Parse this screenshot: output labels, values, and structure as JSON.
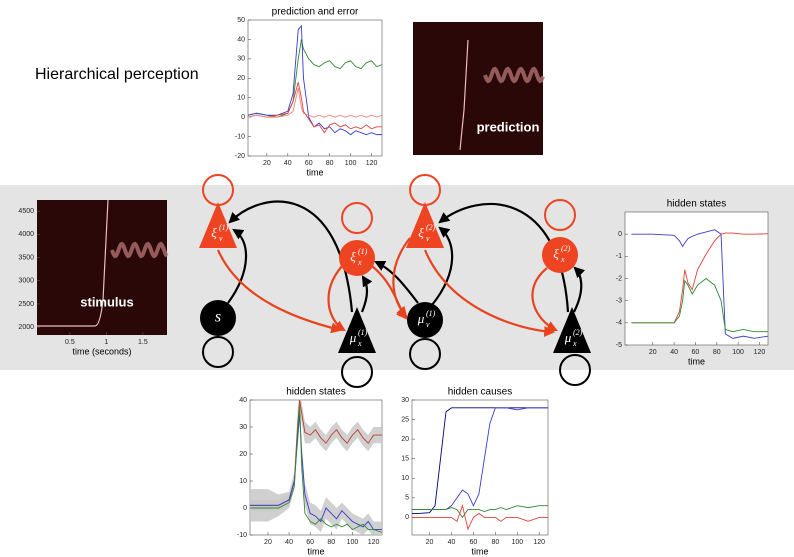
{
  "title": "Hierarchical perception",
  "prediction_label": "prediction",
  "chart_data": [
    {
      "type": "line",
      "title": "prediction and error",
      "xlabel": "time",
      "xlim": [
        2,
        130
      ],
      "ylim": [
        -20,
        50
      ],
      "xticks": [
        20,
        40,
        60,
        80,
        100,
        120
      ],
      "yticks": [
        -20,
        -10,
        0,
        10,
        20,
        30,
        40,
        50
      ],
      "x": [
        2,
        10,
        20,
        30,
        40,
        45,
        50,
        53,
        55,
        60,
        65,
        70,
        75,
        80,
        85,
        90,
        95,
        100,
        105,
        110,
        115,
        120,
        125,
        130
      ],
      "series": [
        {
          "color": "#2e8b2e",
          "values": [
            1,
            2,
            1,
            0,
            2,
            8,
            30,
            40,
            35,
            30,
            27,
            26,
            28,
            29,
            26,
            25,
            28,
            29,
            26,
            25,
            28,
            29,
            26,
            27
          ]
        },
        {
          "color": "#3a3acd",
          "values": [
            1,
            2,
            1,
            1,
            3,
            12,
            45,
            47,
            20,
            0,
            -5,
            -3,
            -6,
            -5,
            -8,
            -6,
            -7,
            -9,
            -7,
            -8,
            -9,
            -8,
            -9,
            -9
          ]
        },
        {
          "color": "#e0403a",
          "values": [
            0,
            1,
            0,
            1,
            2,
            8,
            18,
            10,
            3,
            -1,
            -5,
            -4,
            -8,
            -4,
            -3,
            -5,
            -4,
            -6,
            -5,
            -6,
            -4,
            -6,
            -5,
            -5
          ]
        },
        {
          "color": "#f08080",
          "values": [
            0,
            1,
            0,
            0,
            1,
            3,
            15,
            5,
            2,
            1,
            0,
            1,
            0,
            1,
            0,
            1,
            0,
            1,
            0,
            1,
            0,
            1,
            0,
            1
          ]
        }
      ]
    },
    {
      "type": "image",
      "label": "stimulus",
      "xlabel": "time (seconds)",
      "xlim": [
        0.05,
        1.83
      ],
      "ylim": [
        1830,
        4740
      ],
      "xticks": [
        0.5,
        1,
        1.5
      ],
      "yticks": [
        2000,
        2500,
        3000,
        3500,
        4000,
        4500
      ]
    },
    {
      "type": "line",
      "title": "hidden states",
      "xlabel": "time",
      "xlim": [
        -6,
        128
      ],
      "ylim": [
        -5,
        1
      ],
      "xticks": [
        20,
        40,
        60,
        80,
        100,
        120
      ],
      "yticks": [
        -5,
        -4,
        -3,
        -2,
        -1,
        0
      ],
      "x": [
        0,
        20,
        40,
        45,
        48,
        50,
        53,
        57,
        62,
        70,
        78,
        84,
        88,
        95,
        105,
        115,
        128
      ],
      "series": [
        {
          "color": "#3a3acd",
          "values": [
            0,
            0,
            -0.05,
            -0.3,
            -0.55,
            -0.4,
            -0.2,
            -0.1,
            0,
            0.1,
            0.2,
            0,
            -4.5,
            -4.7,
            -4.6,
            -4.7,
            -4.6
          ]
        },
        {
          "color": "#e0403a",
          "values": [
            -4,
            -4,
            -4,
            -3.5,
            -2.5,
            -1.6,
            -2.2,
            -2.5,
            -1.6,
            -0.9,
            -0.3,
            0,
            0.05,
            0.05,
            0,
            0,
            0.02
          ]
        },
        {
          "color": "#2e8b2e",
          "values": [
            -4,
            -4,
            -4,
            -3.7,
            -3,
            -2.1,
            -2.3,
            -2.7,
            -2.3,
            -2,
            -2.3,
            -3,
            -4.3,
            -4.4,
            -4.3,
            -4.4,
            -4.4
          ]
        }
      ]
    },
    {
      "type": "line",
      "title": "hidden states",
      "xlabel": "time",
      "xlim": [
        3,
        128
      ],
      "ylim": [
        -10,
        40
      ],
      "xticks": [
        20,
        40,
        60,
        80,
        100,
        120
      ],
      "yticks": [
        -10,
        0,
        10,
        20,
        30,
        40
      ],
      "x": [
        3,
        10,
        20,
        30,
        40,
        45,
        48,
        50,
        52,
        55,
        60,
        65,
        70,
        75,
        80,
        85,
        90,
        95,
        100,
        105,
        110,
        115,
        120,
        128
      ],
      "series": [
        {
          "color": "#c0392b",
          "values": [
            1,
            1,
            1,
            1,
            3,
            10,
            30,
            40,
            35,
            28,
            27,
            29,
            26,
            24,
            27,
            29,
            26,
            24,
            27,
            29,
            26,
            24,
            27,
            27
          ],
          "ci": [
            2,
            2,
            2,
            2,
            2,
            3,
            5,
            4,
            4,
            4,
            3,
            3,
            3,
            3,
            3,
            3,
            3,
            3,
            3,
            3,
            3,
            3,
            3,
            3
          ]
        },
        {
          "color": "#3a3acd",
          "values": [
            1,
            1,
            1,
            1,
            3,
            10,
            25,
            35,
            20,
            5,
            -2,
            -3,
            -5,
            0,
            -2,
            -4,
            -1,
            -3,
            -5,
            -6,
            -7,
            -5,
            -8,
            -8
          ],
          "ci": [
            6,
            6,
            6,
            4,
            3,
            3,
            3,
            3,
            4,
            4,
            4,
            4,
            4,
            4,
            4,
            4,
            3,
            3,
            3,
            3,
            3,
            3,
            3,
            3
          ]
        },
        {
          "color": "#2e8b2e",
          "values": [
            0,
            0,
            0,
            0,
            2,
            8,
            28,
            38,
            15,
            -2,
            -5,
            -6,
            -4,
            -6,
            -7,
            -6,
            -7,
            -6,
            -8,
            -7,
            -6,
            -8,
            -8,
            -9
          ]
        }
      ]
    },
    {
      "type": "line",
      "title": "hidden causes",
      "xlabel": "time",
      "xlim": [
        4,
        128
      ],
      "ylim": [
        -4.5,
        30
      ],
      "xticks": [
        20,
        40,
        60,
        80,
        100,
        120
      ],
      "yticks": [
        0,
        5,
        10,
        15,
        20,
        25,
        30
      ],
      "x": [
        4,
        10,
        20,
        25,
        30,
        35,
        40,
        45,
        50,
        55,
        60,
        65,
        70,
        75,
        80,
        85,
        90,
        100,
        110,
        120,
        128
      ],
      "series": [
        {
          "color": "#000080",
          "values": [
            1,
            1,
            1.2,
            3,
            15,
            27,
            28,
            28,
            28,
            28,
            28,
            28,
            28,
            28,
            28,
            28,
            28,
            28,
            28,
            28,
            28
          ]
        },
        {
          "color": "#3a3acd",
          "values": [
            2,
            2,
            2,
            2,
            2,
            2,
            3,
            5,
            7,
            6,
            3,
            6,
            15,
            24,
            28,
            28,
            28,
            27.5,
            28,
            28,
            28
          ]
        },
        {
          "color": "#2e8b2e",
          "values": [
            2,
            2,
            2,
            2,
            2,
            2,
            2.5,
            2,
            0,
            2,
            2,
            2,
            1.5,
            2,
            2,
            2.5,
            2,
            3,
            2.5,
            3,
            3
          ]
        },
        {
          "color": "#e0403a",
          "values": [
            0,
            0,
            0,
            0,
            0,
            0,
            0,
            -1,
            3,
            -3,
            0,
            1,
            0,
            0,
            0,
            -1,
            0,
            0,
            -1,
            0,
            0
          ]
        }
      ]
    }
  ],
  "diagram": {
    "nodes": [
      {
        "symbol": "ξ",
        "sub": "v",
        "sup": "(1)"
      },
      {
        "symbol": "ξ",
        "sub": "x",
        "sup": "(1)"
      },
      {
        "symbol": "s"
      },
      {
        "symbol": "μ",
        "sub": "x",
        "sup": "(1)"
      },
      {
        "symbol": "ξ",
        "sub": "v",
        "sup": "(2)"
      },
      {
        "symbol": "μ",
        "sub": "v",
        "sup": "(1)"
      },
      {
        "symbol": "ξ",
        "sub": "x",
        "sup": "(2)"
      },
      {
        "symbol": "μ",
        "sub": "x",
        "sup": "(2)"
      }
    ]
  }
}
